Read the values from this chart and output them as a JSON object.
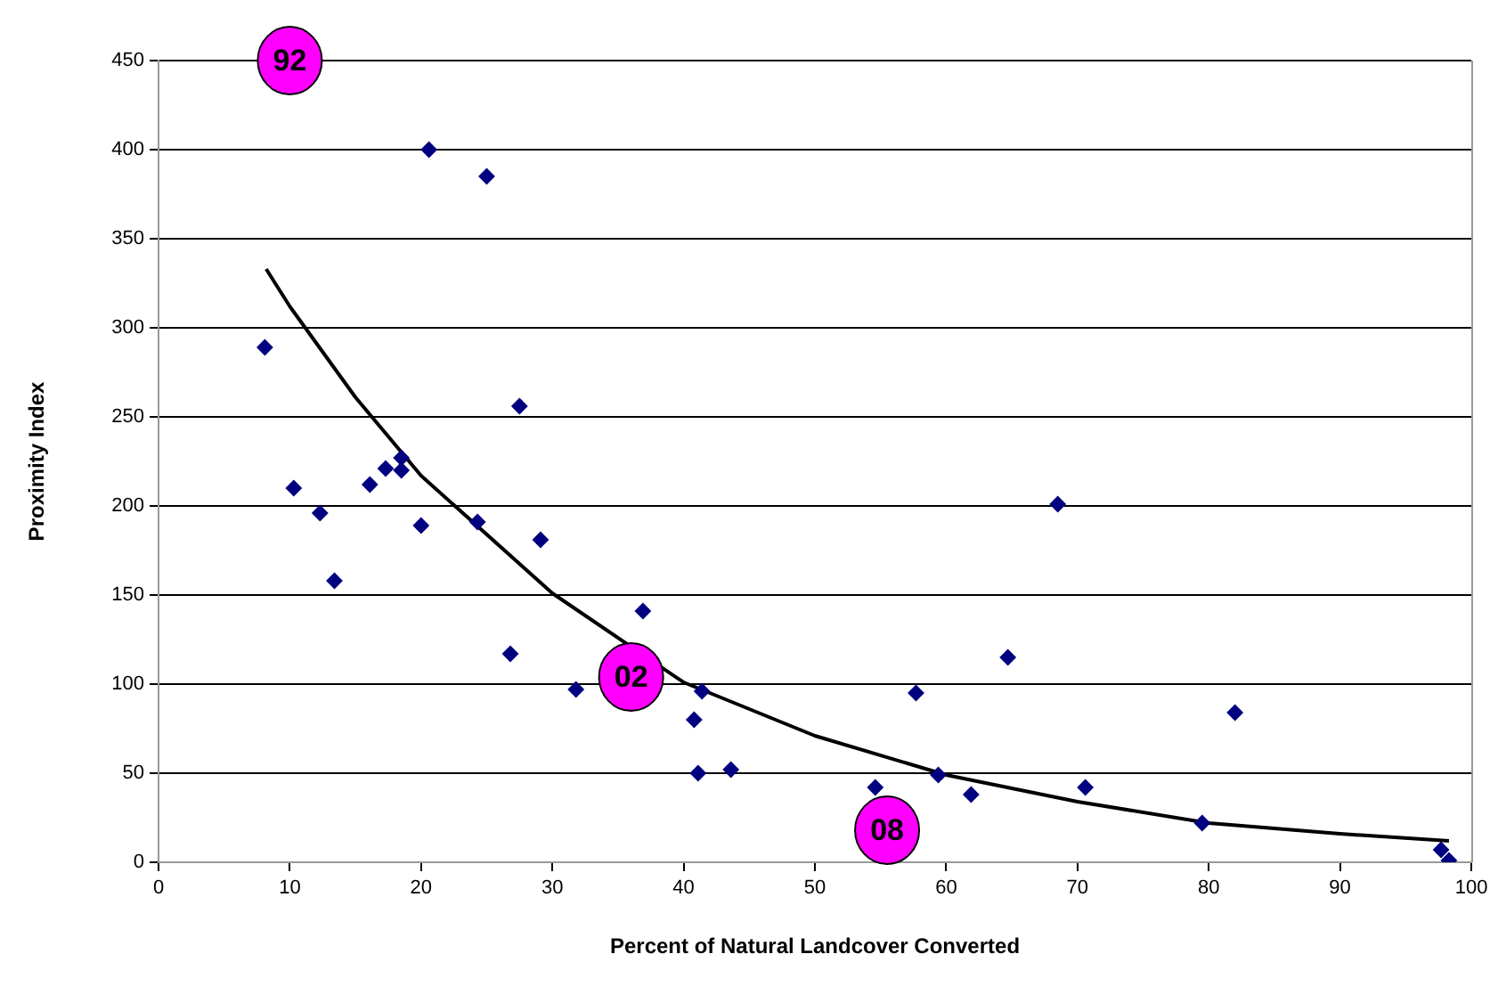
{
  "chart_data": {
    "type": "scatter",
    "xlabel": "Percent of Natural Landcover Converted",
    "ylabel": "Proximity Index",
    "xlim": [
      0,
      100
    ],
    "xticks": [
      0,
      10,
      20,
      30,
      40,
      50,
      60,
      70,
      80,
      90,
      100
    ],
    "ylim": [
      0,
      450
    ],
    "yticks": [
      0,
      50,
      100,
      150,
      200,
      250,
      300,
      350,
      400,
      450
    ],
    "grid": "y",
    "legend": false,
    "marker": "diamond",
    "series": [
      {
        "color": "#000080",
        "x": [
          8.1,
          20.6,
          25.0,
          27.5,
          10.3,
          12.3,
          13.4,
          16.1,
          17.3,
          18.5,
          18.5,
          20.0,
          24.3,
          29.1,
          26.8,
          31.8,
          36.9,
          41.4,
          40.8,
          41.1,
          43.6,
          54.6,
          57.7,
          59.4,
          61.9,
          64.7,
          68.5,
          70.6,
          79.5,
          82.0,
          97.7,
          98.3
        ],
        "values": [
          289,
          400,
          385,
          256,
          210,
          196,
          158,
          212,
          221,
          227,
          220,
          189,
          191,
          181,
          117,
          97,
          141,
          96,
          80,
          50,
          52,
          42,
          95,
          49,
          38,
          115,
          201,
          42,
          22,
          84,
          7,
          1
        ]
      },
      {
        "type": "line",
        "color": "#000000",
        "marker": "none",
        "line_style": "solid",
        "x": [
          8.2,
          10,
          15,
          20,
          30,
          40,
          50,
          60,
          70,
          80,
          90,
          98.3
        ],
        "values": [
          333,
          312,
          261,
          217,
          151,
          101,
          71,
          49,
          34,
          22,
          16,
          12
        ]
      }
    ],
    "annotations": [
      {
        "text": "92",
        "x": 10,
        "y": 450
      },
      {
        "text": "02",
        "x": 36,
        "y": 104
      },
      {
        "text": "08",
        "x": 55.5,
        "y": 18
      }
    ]
  }
}
